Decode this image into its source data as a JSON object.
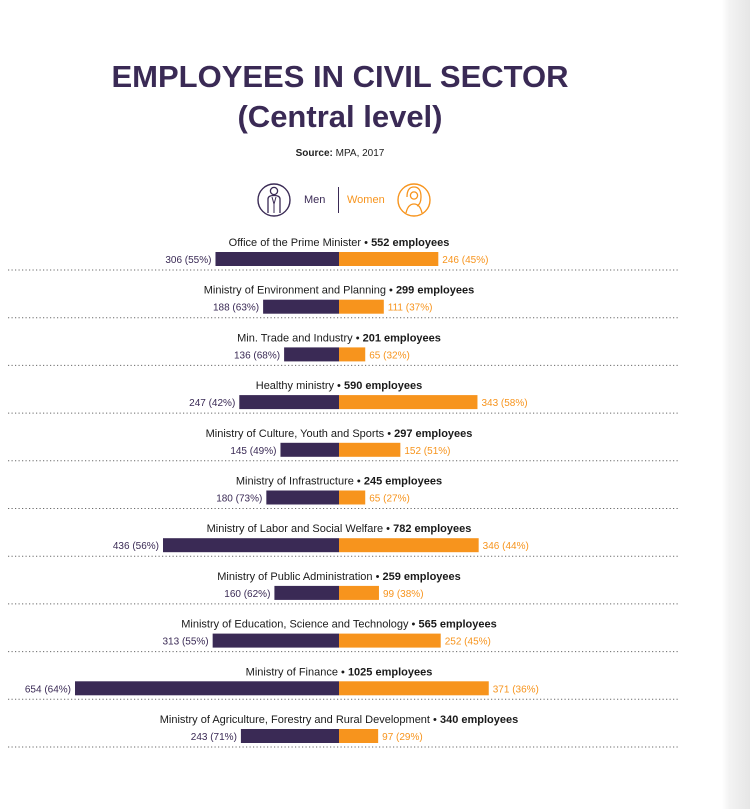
{
  "title_line1": "EMPLOYEES IN CIVIL SECTOR",
  "title_line2": "(Central level)",
  "source_label": "Source:",
  "source_value": "MPA, 2017",
  "legend": {
    "men": "Men",
    "women": "Women"
  },
  "colors": {
    "men": "#3a2a55",
    "women": "#f7941d"
  },
  "chart_data": {
    "type": "bar",
    "orientation": "horizontal-diverging",
    "categories": [
      "Office of the Prime Minister",
      "Ministry of Environment and Planning",
      "Min. Trade and Industry",
      "Healthy ministry",
      "Ministry of Culture, Youth and Sports",
      "Ministry of Infrastructure",
      "Ministry of Labor and Social Welfare",
      "Ministry of Public Administration",
      "Ministry of Education, Science and Technology",
      "Ministry of Finance ",
      "Ministry of Agriculture, Forestry and Rural Development"
    ],
    "totals": [
      "552 employees",
      "299 employees",
      "201 employees",
      "590 employees",
      "297 employees",
      "245 employees",
      "782 employees",
      "259 employees",
      "565 employees",
      "1025 employees",
      "340 employees"
    ],
    "series": [
      {
        "name": "Men",
        "values": [
          306,
          188,
          136,
          247,
          145,
          180,
          436,
          160,
          313,
          654,
          243
        ],
        "labels": [
          "306 (55%)",
          "188 (63%)",
          "136 (68%)",
          "247 (42%)",
          "145 (49%)",
          "180 (73%)",
          "436 (56%)",
          "160 (62%)",
          "313 (55%)",
          "654 (64%)",
          "243 (71%)"
        ]
      },
      {
        "name": "Women",
        "values": [
          246,
          111,
          65,
          343,
          152,
          65,
          346,
          99,
          252,
          371,
          97
        ],
        "labels": [
          "246 (45%)",
          "111 (37%)",
          "65 (32%)",
          "343 (58%)",
          "152 (51%)",
          "65 (27%)",
          "346 (44%)",
          "99 (38%)",
          "252 (45%)",
          "371 (36%)",
          "97 (29%)"
        ]
      }
    ]
  }
}
